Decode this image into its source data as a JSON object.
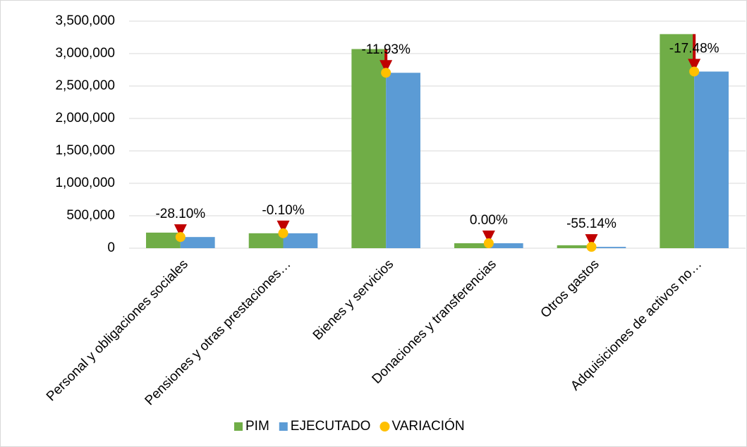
{
  "chart_data": {
    "type": "bar",
    "categories": [
      "Personal y obligaciones sociales",
      "Pensiones y otras prestaciones…",
      "Bienes y servicios",
      "Donaciones y transferencias",
      "Otros gastos",
      "Adquisiciones de activos no…"
    ],
    "series": [
      {
        "name": "PIM",
        "color": "#70ad47",
        "values": [
          240000,
          230000,
          3070000,
          76000,
          45000,
          3300000
        ]
      },
      {
        "name": "EJECUTADO",
        "color": "#5b9bd5",
        "values": [
          172000,
          229770,
          2704000,
          76000,
          20000,
          2723000
        ]
      },
      {
        "name": "VARIACIÓN",
        "color": "#ffc000",
        "values": [
          -28.1,
          -0.1,
          -11.93,
          0,
          -55.14,
          -17.48
        ],
        "value_labels": [
          "-28.10%",
          "-0.10%",
          "-11.93%",
          "0.00%",
          "-55.14%",
          "-17.48%"
        ]
      }
    ],
    "arrow_color": "#c00000",
    "ylim": [
      0,
      3500000
    ],
    "yticks": [
      0,
      {
        "value": 500000,
        "label": "500,000"
      },
      {
        "value": 1000000,
        "label": "1,000,000"
      },
      {
        "value": 1500000,
        "label": "1,500,000"
      },
      {
        "value": 2000000,
        "label": "2,000,000"
      },
      {
        "value": 2500000,
        "label": "2,500,000"
      },
      {
        "value": 3000000,
        "label": "3,000,000"
      },
      {
        "value": 3500000,
        "label": "3,500,000"
      }
    ],
    "grid": true
  }
}
